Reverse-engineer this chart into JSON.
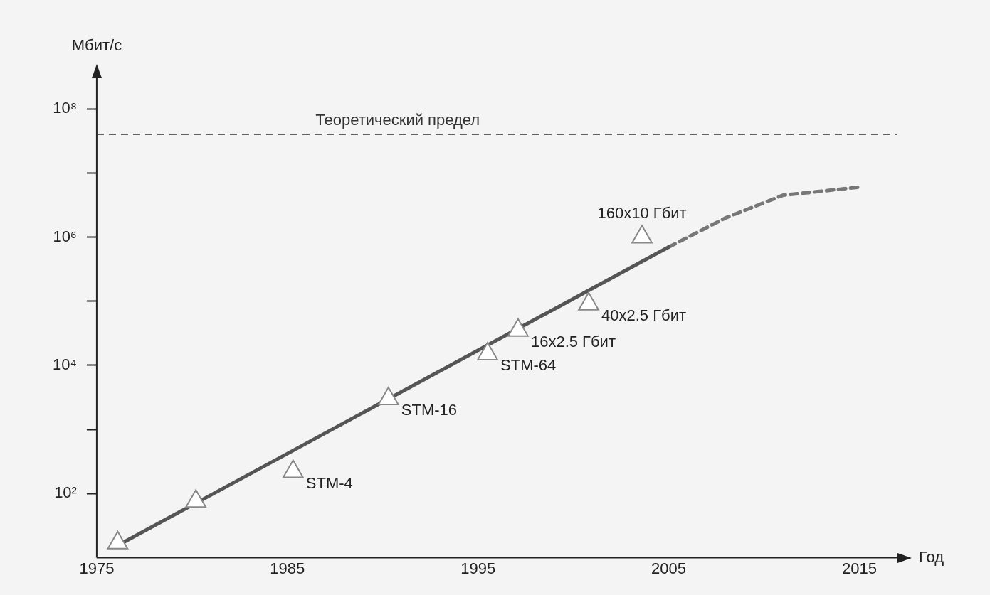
{
  "chart_data": {
    "type": "line",
    "xlabel": "Год",
    "ylabel": "Мбит/с",
    "log": "y",
    "grid": false,
    "legend": false,
    "xlim": [
      1975,
      2017
    ],
    "xticks": [
      1975,
      1985,
      1995,
      2005,
      2015
    ],
    "ylim": [
      10,
      300000000
    ],
    "yticks": [
      {
        "value": 100,
        "label": "10²"
      },
      {
        "value": 1000,
        "label": null
      },
      {
        "value": 10000,
        "label": "10⁴"
      },
      {
        "value": 100000,
        "label": null
      },
      {
        "value": 1000000,
        "label": "10⁶"
      },
      {
        "value": 10000000,
        "label": null
      },
      {
        "value": 100000000,
        "label": "10⁸"
      }
    ],
    "series": [
      {
        "x": [
          1976,
          1985,
          2005
        ],
        "values": [
          15,
          420,
          700000
        ],
        "color": "#555555",
        "line_style": "solid",
        "marker": "none"
      },
      {
        "type": "line",
        "x": [
          2005,
          2008,
          2011,
          2015
        ],
        "values": [
          700000,
          2000000,
          4500000,
          6000000
        ],
        "color": "#777777",
        "line_style": "dashed",
        "marker": "none"
      },
      {
        "type": "scatter",
        "x": [
          1976.1,
          1980.2,
          1985.3,
          1990.3,
          1995.5,
          1997.1,
          2000.8,
          2003.6
        ],
        "values": [
          17,
          76,
          220,
          3000,
          15000,
          35000,
          90000,
          1000000
        ],
        "color": "#888888",
        "marker": "triangle"
      }
    ],
    "annotations": [
      {
        "text": "STM-4",
        "x": 1985.3,
        "y": 220
      },
      {
        "text": "STM-16",
        "x": 1990.3,
        "y": 3000
      },
      {
        "text": "STM-64",
        "x": 1995.5,
        "y": 15000
      },
      {
        "text": "16x2.5 Гбит",
        "x": 1997.1,
        "y": 35000
      },
      {
        "text": "40x2.5 Гбит",
        "x": 2000.8,
        "y": 90000
      },
      {
        "text": "160x10 Гбит",
        "x": 2003.6,
        "y": 1000000
      }
    ],
    "ref_lines": [
      {
        "axis": "y",
        "value": 40000000,
        "label": "Теоретический предел",
        "line_style": "dashed",
        "color": "#333333"
      }
    ]
  }
}
